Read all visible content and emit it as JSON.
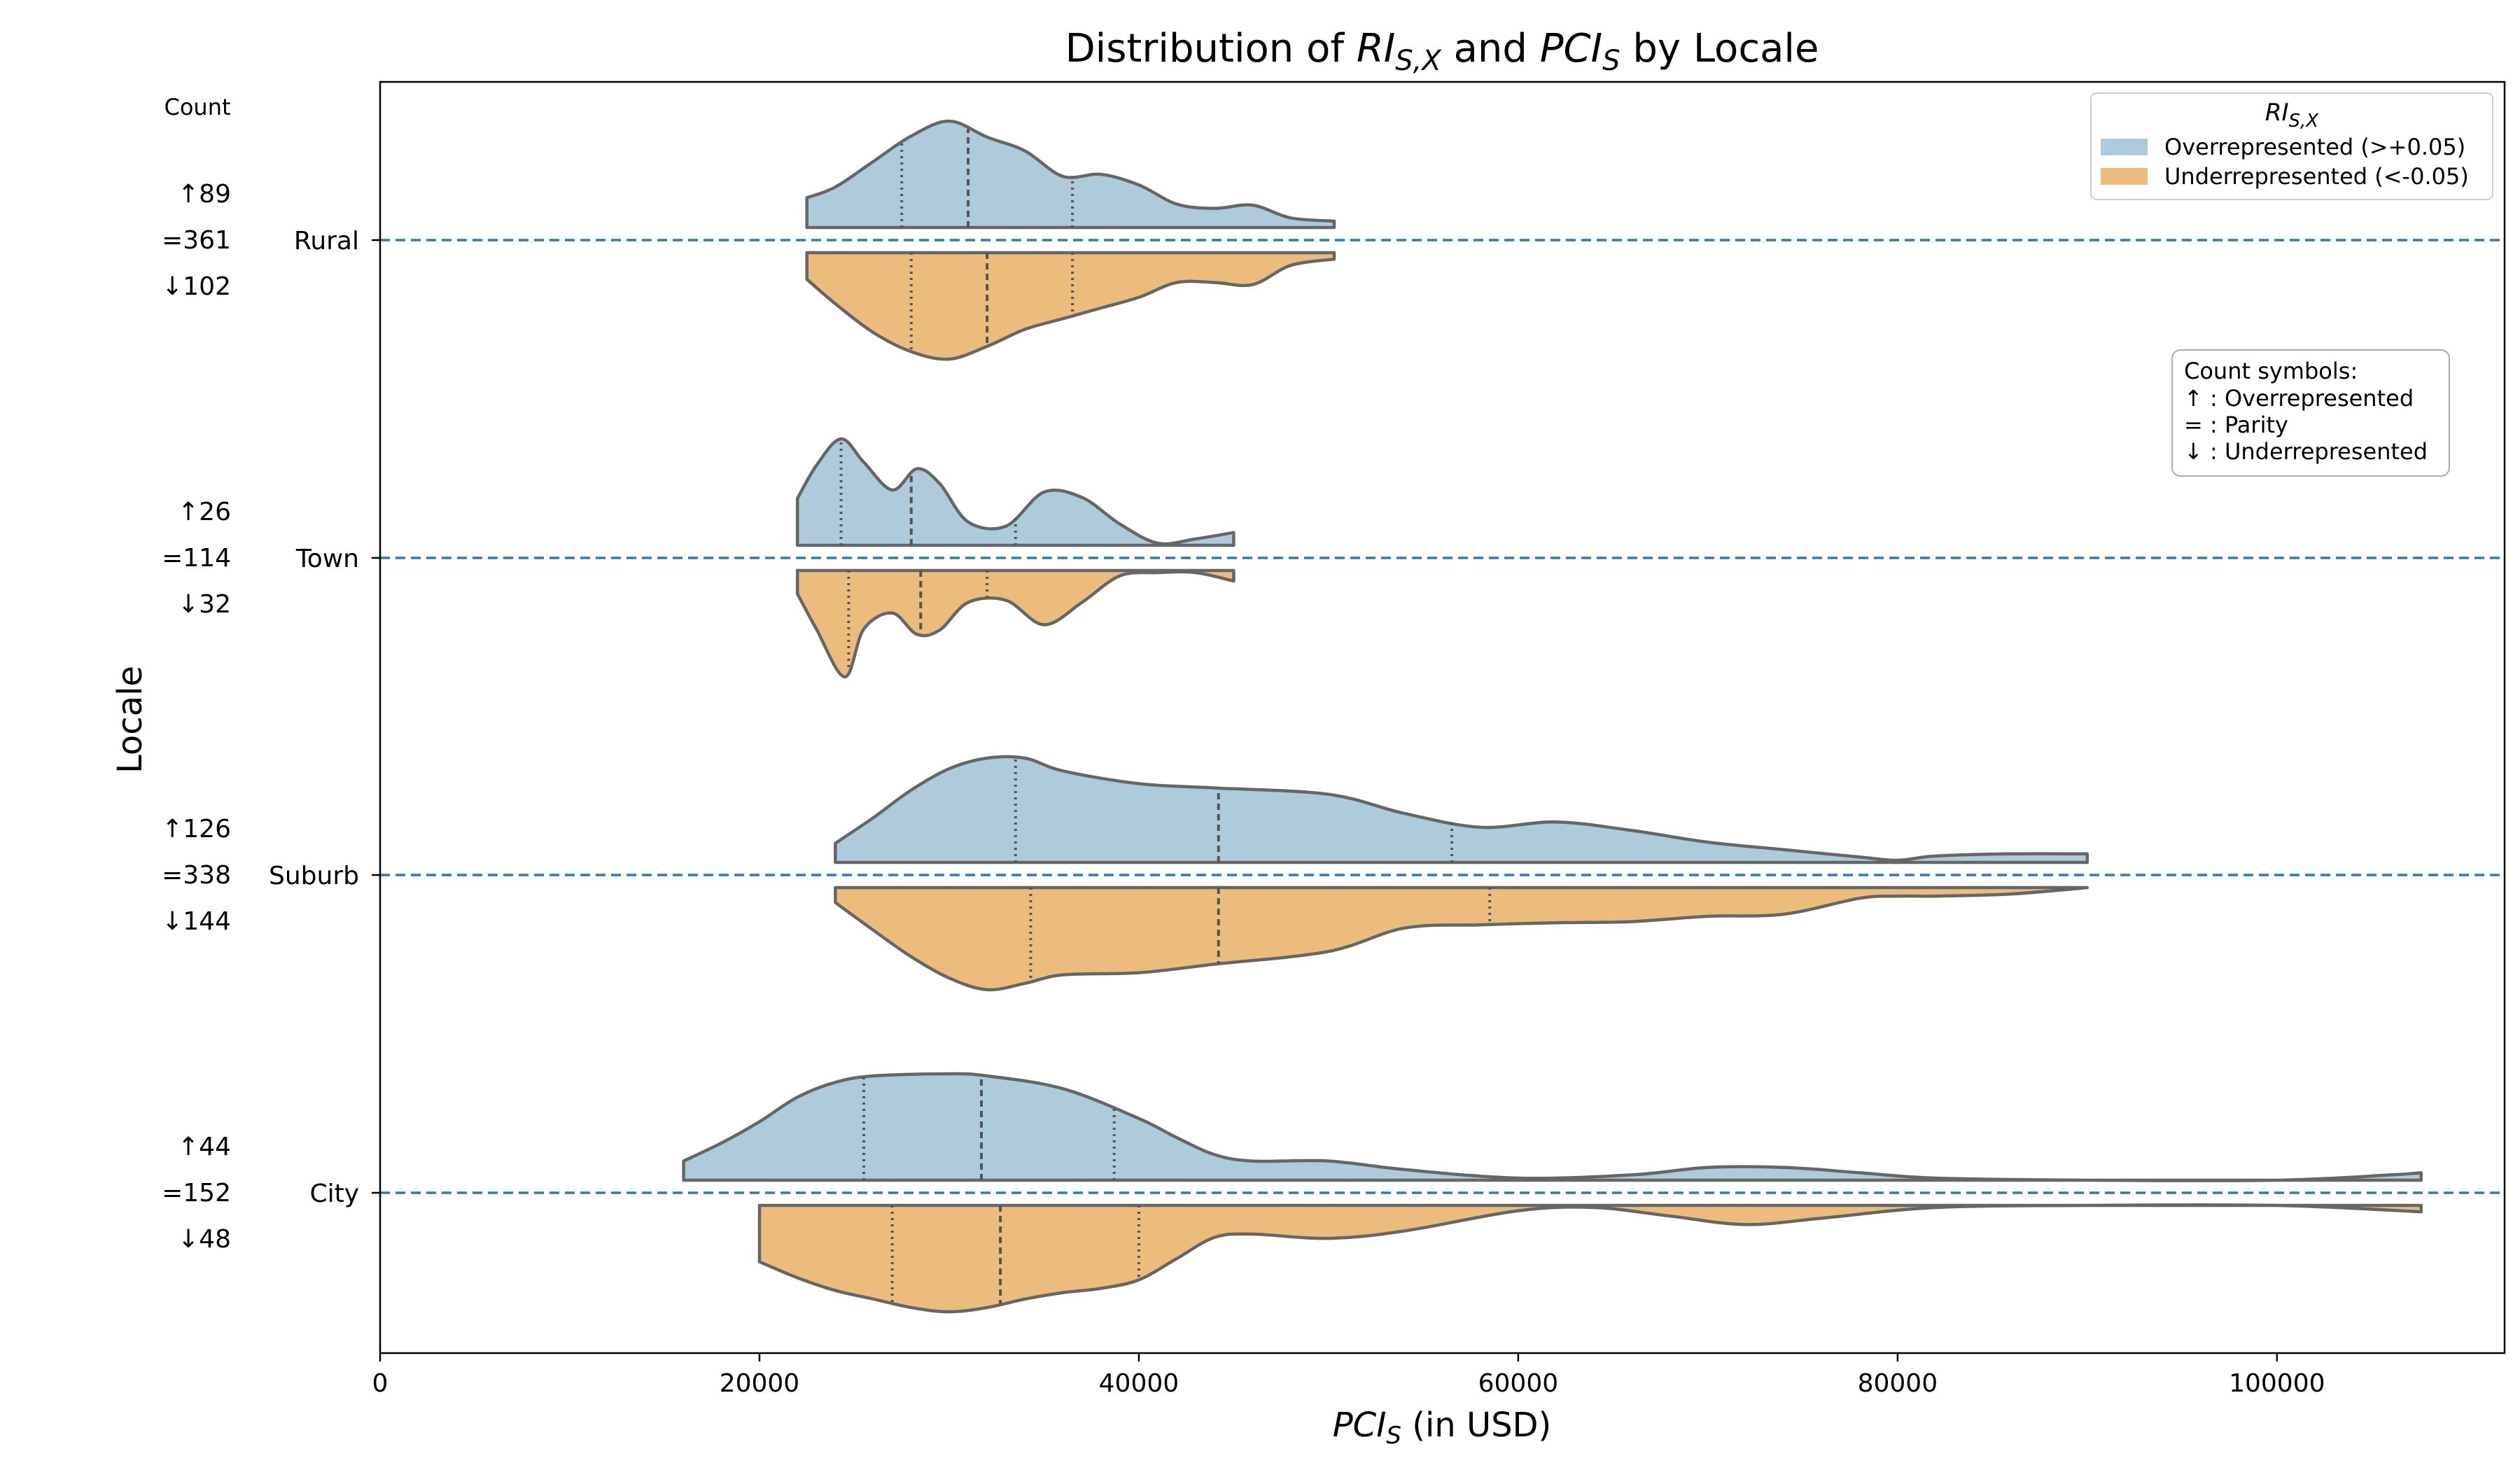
{
  "chart_data": {
    "type": "violin",
    "orientation": "horizontal",
    "title_prefix": "Distribution of ",
    "title_sym1": "RI",
    "title_sub1": "S,X",
    "title_mid": " and ",
    "title_sym2": "PCI",
    "title_sub2": "S",
    "title_suffix": " by Locale",
    "xlabel_sym": "PCI",
    "xlabel_sub": "S",
    "xlabel_rest": " (in USD)",
    "ylabel": "Locale",
    "xlim": [
      0,
      112000
    ],
    "xticks": [
      0,
      20000,
      40000,
      60000,
      80000,
      100000
    ],
    "xtick_labels": [
      "0",
      "20000",
      "40000",
      "60000",
      "80000",
      "100000"
    ],
    "count_header": "Count",
    "grid": false,
    "colors": {
      "over": "#aecbdc",
      "under": "#ecbc7c",
      "outline": "#666666",
      "refline": "#2e7bb4"
    },
    "legend": {
      "placement": "top-right",
      "title_sym": "RI",
      "title_sub": "S,X",
      "entries": [
        {
          "label": "Overrepresented (>+0.05)",
          "color": "#aecbdc"
        },
        {
          "label": "Underrepresented (<-0.05)",
          "color": "#ecbc7c"
        }
      ]
    },
    "symbol_box": {
      "lines": [
        "Count symbols:",
        "↑ : Overrepresented",
        "= : Parity",
        "↓ : Underrepresented"
      ]
    },
    "categories": [
      {
        "name": "Rural",
        "counts": {
          "over": "↑89",
          "parity": "=361",
          "under": "↓102"
        },
        "over": {
          "x": [
            22500,
            24000,
            26000,
            28000,
            30000,
            32000,
            34000,
            36000,
            38000,
            40000,
            42000,
            44000,
            46000,
            48000,
            50300
          ],
          "y": [
            0.28,
            0.38,
            0.62,
            0.86,
            1.0,
            0.85,
            0.72,
            0.48,
            0.5,
            0.4,
            0.22,
            0.18,
            0.21,
            0.09,
            0.06
          ],
          "quartiles": [
            27500,
            31000,
            36500
          ]
        },
        "under": {
          "x": [
            22500,
            24000,
            26000,
            28000,
            30000,
            32000,
            34000,
            36000,
            38000,
            40000,
            42000,
            44000,
            46000,
            48000,
            50300
          ],
          "y": [
            0.25,
            0.48,
            0.75,
            0.93,
            1.0,
            0.88,
            0.72,
            0.62,
            0.52,
            0.42,
            0.28,
            0.28,
            0.3,
            0.12,
            0.06
          ],
          "quartiles": [
            28000,
            32000,
            36500
          ]
        }
      },
      {
        "name": "Town",
        "counts": {
          "over": "↑26",
          "parity": "=114",
          "under": "↓32"
        },
        "over": {
          "x": [
            22000,
            23000,
            24300,
            25500,
            27000,
            28300,
            29500,
            31000,
            33000,
            35000,
            37000,
            39000,
            41000,
            43000,
            45000
          ],
          "y": [
            0.44,
            0.75,
            1.0,
            0.78,
            0.52,
            0.72,
            0.58,
            0.22,
            0.18,
            0.5,
            0.45,
            0.2,
            0.02,
            0.06,
            0.12
          ],
          "quartiles": [
            24300,
            28000,
            33500
          ]
        },
        "under": {
          "x": [
            22000,
            23000,
            24500,
            25500,
            27000,
            28300,
            29500,
            31000,
            33000,
            35000,
            37000,
            39000,
            41000,
            43000,
            45000
          ],
          "y": [
            0.22,
            0.55,
            1.0,
            0.55,
            0.4,
            0.6,
            0.56,
            0.3,
            0.28,
            0.51,
            0.3,
            0.05,
            0.02,
            0.02,
            0.1
          ],
          "quartiles": [
            24700,
            28500,
            32000
          ]
        }
      },
      {
        "name": "Suburb",
        "counts": {
          "over": "↑126",
          "parity": "=338",
          "under": "↓144"
        },
        "over": {
          "x": [
            24000,
            26000,
            28000,
            30000,
            32000,
            34000,
            36000,
            40000,
            44000,
            50000,
            54000,
            58000,
            62000,
            66000,
            70000,
            74000,
            78000,
            80000,
            82000,
            86000,
            90000
          ],
          "y": [
            0.18,
            0.42,
            0.68,
            0.88,
            0.98,
            0.98,
            0.86,
            0.74,
            0.7,
            0.64,
            0.46,
            0.33,
            0.38,
            0.3,
            0.19,
            0.12,
            0.05,
            0.02,
            0.06,
            0.08,
            0.08
          ],
          "quartiles": [
            33500,
            44200,
            56500
          ]
        },
        "under": {
          "x": [
            24000,
            26000,
            28000,
            30000,
            32000,
            34000,
            36000,
            40000,
            44000,
            50000,
            54000,
            58000,
            62000,
            66000,
            70000,
            74000,
            78000,
            80000,
            82000,
            86000,
            90000
          ],
          "y": [
            0.14,
            0.4,
            0.65,
            0.85,
            0.96,
            0.9,
            0.82,
            0.8,
            0.72,
            0.6,
            0.38,
            0.35,
            0.33,
            0.32,
            0.27,
            0.25,
            0.1,
            0.08,
            0.08,
            0.06,
            0.0
          ],
          "quartiles": [
            34300,
            44200,
            58500
          ]
        }
      },
      {
        "name": "City",
        "counts": {
          "over": "↑44",
          "parity": "=152",
          "under": "↓48"
        },
        "over": {
          "x": [
            16000,
            18000,
            20000,
            22000,
            24000,
            26000,
            30000,
            32000,
            36000,
            40000,
            42000,
            44000,
            46000,
            50000,
            54000,
            60000,
            66000,
            70000,
            74000,
            78000,
            82000,
            90000,
            100000,
            106000,
            107600
          ],
          "y": [
            0.18,
            0.35,
            0.55,
            0.78,
            0.92,
            0.98,
            1.0,
            0.98,
            0.86,
            0.58,
            0.4,
            0.24,
            0.18,
            0.18,
            0.1,
            0.02,
            0.05,
            0.12,
            0.12,
            0.07,
            0.02,
            0.0,
            0.0,
            0.05,
            0.07
          ],
          "quartiles": [
            25500,
            31700,
            38700
          ]
        },
        "under": {
          "x": [
            20000,
            22000,
            24000,
            26000,
            28000,
            30000,
            32000,
            34000,
            36000,
            38000,
            40000,
            42000,
            44000,
            46000,
            50000,
            54000,
            60000,
            64000,
            68000,
            72000,
            76000,
            82000,
            90000,
            100000,
            107600
          ],
          "y": [
            0.53,
            0.68,
            0.8,
            0.88,
            0.96,
            1.0,
            0.96,
            0.88,
            0.82,
            0.78,
            0.7,
            0.5,
            0.3,
            0.27,
            0.31,
            0.24,
            0.05,
            0.02,
            0.1,
            0.18,
            0.12,
            0.02,
            0.0,
            0.0,
            0.06
          ],
          "quartiles": [
            27000,
            32700,
            40000
          ]
        }
      }
    ]
  }
}
